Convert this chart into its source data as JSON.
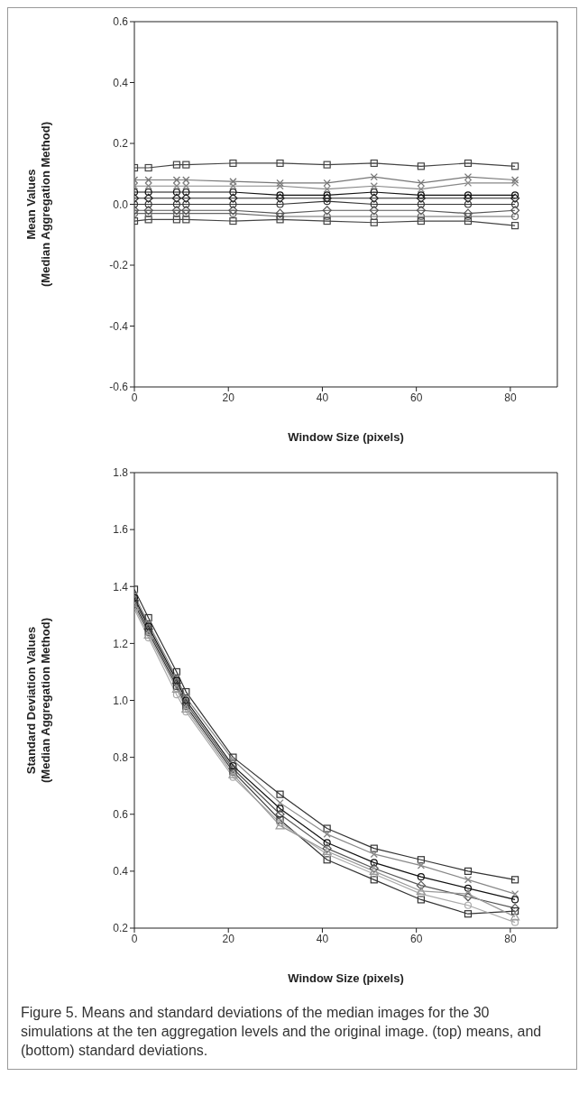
{
  "chart_data": [
    {
      "type": "line",
      "ylabel": "Mean Values\n(Median Aggregation Method)",
      "xlabel": "Window Size (pixels)",
      "x": [
        0,
        3,
        9,
        11,
        21,
        31,
        41,
        51,
        61,
        71,
        81
      ],
      "xlim": [
        0,
        90
      ],
      "xticks": [
        0,
        20,
        40,
        60,
        80
      ],
      "ylim": [
        -0.6,
        0.6
      ],
      "yticks": [
        -0.6,
        -0.4,
        -0.2,
        {
          "value": 0,
          "label": "0.0"
        },
        0.2,
        0.4,
        0.6
      ],
      "line_style": "solid",
      "series": [
        {
          "color": "#444444",
          "marker": "square",
          "values": [
            0.12,
            0.12,
            0.13,
            0.13,
            0.135,
            0.135,
            0.13,
            0.135,
            0.125,
            0.135,
            0.125
          ]
        },
        {
          "color": "#777777",
          "marker": "cross",
          "values": [
            0.08,
            0.08,
            0.08,
            0.08,
            0.075,
            0.07,
            0.07,
            0.09,
            0.07,
            0.09,
            0.08
          ]
        },
        {
          "color": "#888888",
          "marker": "cross",
          "values": [
            0.06,
            0.06,
            0.06,
            0.06,
            0.06,
            0.06,
            0.05,
            0.06,
            0.05,
            0.07,
            0.07
          ]
        },
        {
          "color": "#111111",
          "marker": "circle",
          "values": [
            0.04,
            0.04,
            0.04,
            0.04,
            0.04,
            0.03,
            0.03,
            0.04,
            0.03,
            0.03,
            0.03
          ]
        },
        {
          "color": "#222222",
          "marker": "diamond",
          "values": [
            0.02,
            0.02,
            0.02,
            0.02,
            0.02,
            0.02,
            0.02,
            0.02,
            0.02,
            0.02,
            0.02
          ]
        },
        {
          "color": "#333333",
          "marker": "circle",
          "values": [
            0.0,
            0.0,
            0.0,
            0.0,
            0.0,
            0.0,
            0.01,
            0.0,
            0.0,
            0.0,
            0.0
          ]
        },
        {
          "color": "#555555",
          "marker": "diamond",
          "values": [
            -0.02,
            -0.02,
            -0.02,
            -0.02,
            -0.02,
            -0.03,
            -0.02,
            -0.02,
            -0.02,
            -0.03,
            -0.02
          ]
        },
        {
          "color": "#666666",
          "marker": "circle",
          "values": [
            -0.03,
            -0.03,
            -0.03,
            -0.03,
            -0.03,
            -0.04,
            -0.04,
            -0.04,
            -0.04,
            -0.04,
            -0.04
          ]
        },
        {
          "color": "#444444",
          "marker": "square",
          "values": [
            -0.055,
            -0.05,
            -0.05,
            -0.05,
            -0.055,
            -0.05,
            -0.055,
            -0.06,
            -0.055,
            -0.055,
            -0.07
          ]
        }
      ]
    },
    {
      "type": "line",
      "ylabel": "Standard Deviation Values\n(Median Aggregation Method)",
      "xlabel": "Window Size (pixels)",
      "x": [
        0,
        3,
        9,
        11,
        21,
        31,
        41,
        51,
        61,
        71,
        81
      ],
      "xlim": [
        0,
        90
      ],
      "xticks": [
        0,
        20,
        40,
        60,
        80
      ],
      "ylim": [
        0.2,
        1.8
      ],
      "yticks": [
        0.2,
        0.4,
        0.6,
        0.8,
        {
          "value": 1,
          "label": "1.0"
        },
        1.2,
        1.4,
        1.6,
        1.8
      ],
      "line_style": "solid",
      "annotations": [
        "Figure 5. Means and standard deviations of the median images for the 30 simulations at the ten aggregation levels and the original image. (top) means, and (bottom) standard deviations."
      ],
      "series": [
        {
          "color": "#333333",
          "marker": "square",
          "values": [
            1.39,
            1.29,
            1.1,
            1.03,
            0.8,
            0.67,
            0.55,
            0.48,
            0.44,
            0.4,
            0.37
          ]
        },
        {
          "color": "#888888",
          "marker": "cross",
          "values": [
            1.37,
            1.27,
            1.08,
            1.01,
            0.79,
            0.64,
            0.53,
            0.46,
            0.42,
            0.37,
            0.32
          ]
        },
        {
          "color": "#111111",
          "marker": "circle",
          "values": [
            1.36,
            1.26,
            1.07,
            1.0,
            0.77,
            0.62,
            0.5,
            0.43,
            0.38,
            0.34,
            0.3
          ]
        },
        {
          "color": "#555555",
          "marker": "diamond",
          "values": [
            1.35,
            1.25,
            1.06,
            0.99,
            0.76,
            0.6,
            0.48,
            0.41,
            0.35,
            0.31,
            0.27
          ]
        },
        {
          "color": "#333333",
          "marker": "square",
          "values": [
            1.34,
            1.24,
            1.05,
            0.98,
            0.75,
            0.58,
            0.44,
            0.37,
            0.3,
            0.25,
            0.26
          ]
        },
        {
          "color": "#aaaaaa",
          "marker": "circle",
          "values": [
            1.32,
            1.22,
            1.02,
            0.96,
            0.73,
            0.57,
            0.46,
            0.39,
            0.32,
            0.28,
            0.22
          ]
        },
        {
          "color": "#999999",
          "marker": "triangle",
          "values": [
            1.33,
            1.23,
            1.04,
            0.97,
            0.74,
            0.56,
            0.47,
            0.4,
            0.33,
            0.32,
            0.24
          ]
        }
      ]
    }
  ]
}
